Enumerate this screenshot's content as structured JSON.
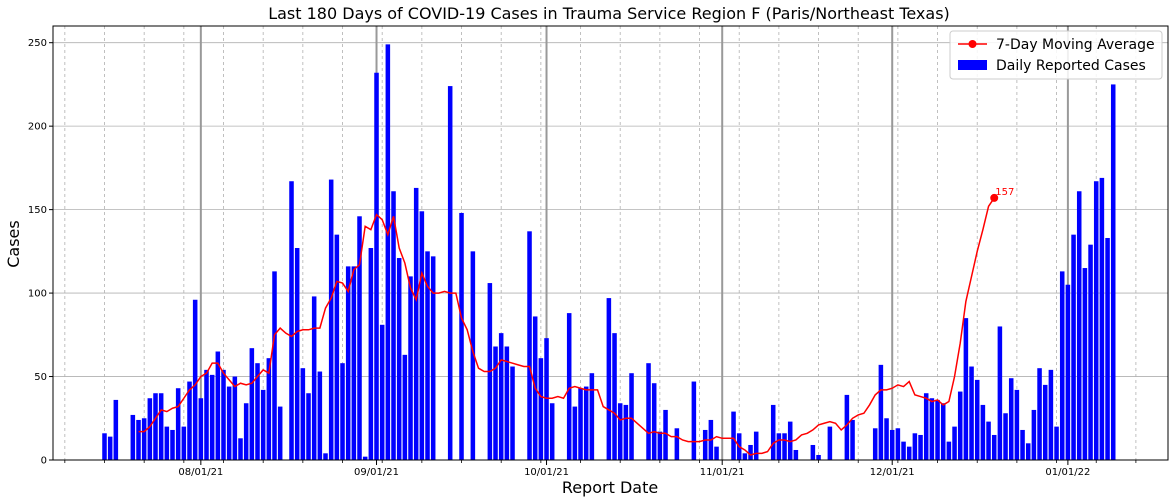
{
  "chart_data": {
    "type": "bar",
    "title": "Last 180 Days of COVID-19 Cases in Trauma Service Region F (Paris/Northeast Texas)",
    "xlabel": "Report Date",
    "ylabel": "Cases",
    "ylim": [
      0,
      260
    ],
    "yticks": [
      0,
      50,
      100,
      150,
      200,
      250
    ],
    "xticks": [
      {
        "label": "08/01/21",
        "day": 17
      },
      {
        "label": "09/01/21",
        "day": 48
      },
      {
        "label": "10/01/21",
        "day": 78
      },
      {
        "label": "11/01/21",
        "day": 109
      },
      {
        "label": "12/01/21",
        "day": 139
      },
      {
        "label": "01/01/22",
        "day": 170
      }
    ],
    "grid": true,
    "legend_position": "top-right",
    "bar_color": "#0000ff",
    "line_color": "#ff0000",
    "series": [
      {
        "name": "Daily Reported Cases",
        "type": "bar",
        "values": [
          16,
          14,
          36,
          0,
          0,
          27,
          24,
          25,
          37,
          40,
          40,
          20,
          18,
          43,
          20,
          47,
          96,
          37,
          54,
          51,
          65,
          54,
          44,
          50,
          13,
          34,
          67,
          58,
          42,
          61,
          113,
          32,
          0,
          167,
          127,
          55,
          40,
          98,
          53,
          4,
          168,
          135,
          58,
          116,
          116,
          146,
          2,
          127,
          232,
          81,
          249,
          161,
          121,
          63,
          110,
          163,
          149,
          125,
          122,
          0,
          0,
          224,
          0,
          148,
          0,
          125,
          0,
          0,
          106,
          68,
          76,
          68,
          56,
          0,
          0,
          137,
          86,
          61,
          73,
          34,
          0,
          0,
          88,
          32,
          43,
          44,
          52,
          0,
          0,
          97,
          76,
          34,
          33,
          52,
          0,
          0,
          58,
          46,
          17,
          30,
          0,
          19,
          0,
          0,
          47,
          0,
          18,
          24,
          8,
          0,
          0,
          29,
          16,
          4,
          9,
          17,
          0,
          0,
          33,
          16,
          16,
          23,
          6,
          0,
          0,
          9,
          3,
          0,
          20,
          0,
          0,
          39,
          24,
          0,
          0,
          0,
          19,
          57,
          25,
          18,
          19,
          11,
          8,
          16,
          15,
          40,
          37,
          36,
          34,
          11,
          20,
          41,
          85,
          56,
          48,
          33,
          23,
          15,
          80,
          28,
          49,
          42,
          18,
          10,
          30,
          55,
          45,
          54,
          20,
          113,
          105,
          135,
          161,
          115,
          129,
          167,
          169,
          133,
          225
        ]
      },
      {
        "name": "7-Day Moving Average",
        "type": "line",
        "start_day": 6,
        "values": [
          17,
          17,
          20,
          25,
          30,
          29,
          31,
          32,
          37,
          42,
          45,
          50,
          52,
          58,
          58,
          52,
          48,
          44,
          46,
          45,
          46,
          50,
          54,
          52,
          75,
          79,
          76,
          74,
          77,
          78,
          78,
          79,
          79,
          91,
          97,
          107,
          106,
          101,
          114,
          117,
          140,
          138,
          147,
          144,
          135,
          146,
          127,
          118,
          103,
          96,
          112,
          104,
          100,
          100,
          101,
          100,
          100,
          85,
          78,
          65,
          55,
          53,
          53,
          55,
          60,
          59,
          58,
          57,
          56,
          56,
          43,
          38,
          37,
          37,
          38,
          37,
          43,
          44,
          43,
          42,
          42,
          42,
          32,
          30,
          28,
          24,
          25,
          25,
          22,
          19,
          16,
          17,
          16,
          16,
          14,
          14,
          12,
          11,
          11,
          11,
          12,
          12,
          14,
          13,
          13,
          13,
          8,
          6,
          3,
          4,
          4,
          5,
          10,
          12,
          12,
          11,
          12,
          15,
          16,
          18,
          21,
          22,
          23,
          22,
          18,
          21,
          25,
          27,
          28,
          33,
          39,
          42,
          42,
          43,
          45,
          44,
          47,
          39,
          38,
          37,
          35,
          36,
          33,
          35,
          50,
          70,
          95,
          110,
          125,
          138,
          152,
          157
        ],
        "last_label": "157"
      }
    ]
  }
}
